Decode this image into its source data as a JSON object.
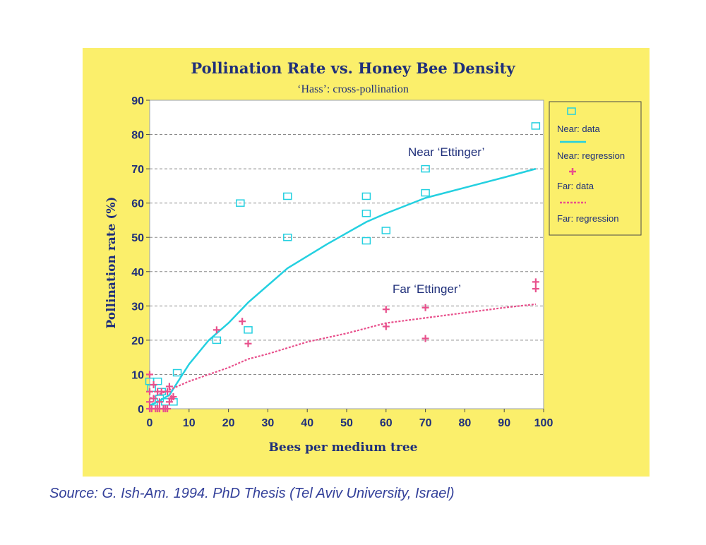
{
  "chart_data": {
    "type": "scatter",
    "title": "Pollination Rate vs. Honey Bee Density",
    "subtitle": "‘Hass’: cross-pollination",
    "xlabel": "Bees per medium tree",
    "ylabel": "Pollination rate (%)",
    "xlim": [
      0,
      100
    ],
    "ylim": [
      0,
      90
    ],
    "xticks": [
      0,
      10,
      20,
      30,
      40,
      50,
      60,
      70,
      80,
      90,
      100
    ],
    "yticks": [
      0,
      10,
      20,
      30,
      40,
      50,
      60,
      70,
      80,
      90
    ],
    "grid": true,
    "legend_position": "right",
    "legend": [
      "Near: data",
      "Near: regression",
      "Far: data",
      "Far: regression"
    ],
    "annotations": [
      {
        "text": "Near ‘Ettinger’",
        "x": 65,
        "y": 73
      },
      {
        "text": "Far ‘Ettinger’",
        "x": 61,
        "y": 34
      }
    ],
    "colors": {
      "near": "#24d0e0",
      "far": "#e8508c",
      "axis_text": "#1f2f7a",
      "panel": "#fbef6b"
    },
    "series": [
      {
        "name": "Near: data",
        "kind": "scatter",
        "marker": "square",
        "x": [
          0,
          0.5,
          1,
          2,
          2.5,
          3,
          4,
          6,
          7,
          17,
          23,
          25,
          35,
          35,
          55,
          55,
          55,
          60,
          70,
          70,
          98
        ],
        "y": [
          8,
          6,
          2,
          8,
          3,
          5,
          2,
          2,
          10.5,
          20,
          60,
          23,
          62,
          50,
          62,
          57,
          49,
          52,
          70,
          63,
          82.5
        ]
      },
      {
        "name": "Near: regression",
        "kind": "line",
        "dash": "solid",
        "x": [
          0,
          2,
          5,
          10,
          15,
          20,
          25,
          35,
          45,
          55,
          60,
          70,
          80,
          90,
          98
        ],
        "y": [
          1,
          2,
          4,
          13,
          20,
          25,
          31,
          41,
          48,
          54.5,
          57,
          61.5,
          64.5,
          67.5,
          70
        ]
      },
      {
        "name": "Far: data",
        "kind": "scatter",
        "marker": "plus",
        "x": [
          0,
          0,
          0,
          0.5,
          1,
          1,
          2,
          2,
          2.5,
          3,
          4,
          4.5,
          5,
          5,
          5.5,
          6,
          17,
          23.5,
          25,
          60,
          60,
          70,
          70,
          98,
          98
        ],
        "y": [
          10,
          5,
          2,
          0,
          7,
          3,
          5,
          0,
          2,
          5,
          0,
          5,
          6.5,
          2,
          3,
          3.5,
          23,
          25.5,
          19,
          29,
          24,
          29.5,
          20.5,
          37,
          35
        ],
        "spoke_x": [
          0,
          0.5,
          1.5,
          2.5,
          3.5,
          4.5
        ],
        "spoke_y": [
          0,
          0,
          0,
          0,
          0,
          0
        ]
      },
      {
        "name": "Far: regression",
        "kind": "line",
        "dash": "dashed",
        "x": [
          0,
          5,
          10,
          15,
          20,
          25,
          30,
          40,
          50,
          60,
          70,
          80,
          90,
          98
        ],
        "y": [
          3,
          5.5,
          8,
          10,
          12,
          14.5,
          16,
          19.5,
          22,
          25,
          26.5,
          28,
          29.5,
          30.5
        ]
      }
    ]
  },
  "source": "Source: G. Ish-Am. 1994. PhD Thesis (Tel Aviv University, Israel)"
}
